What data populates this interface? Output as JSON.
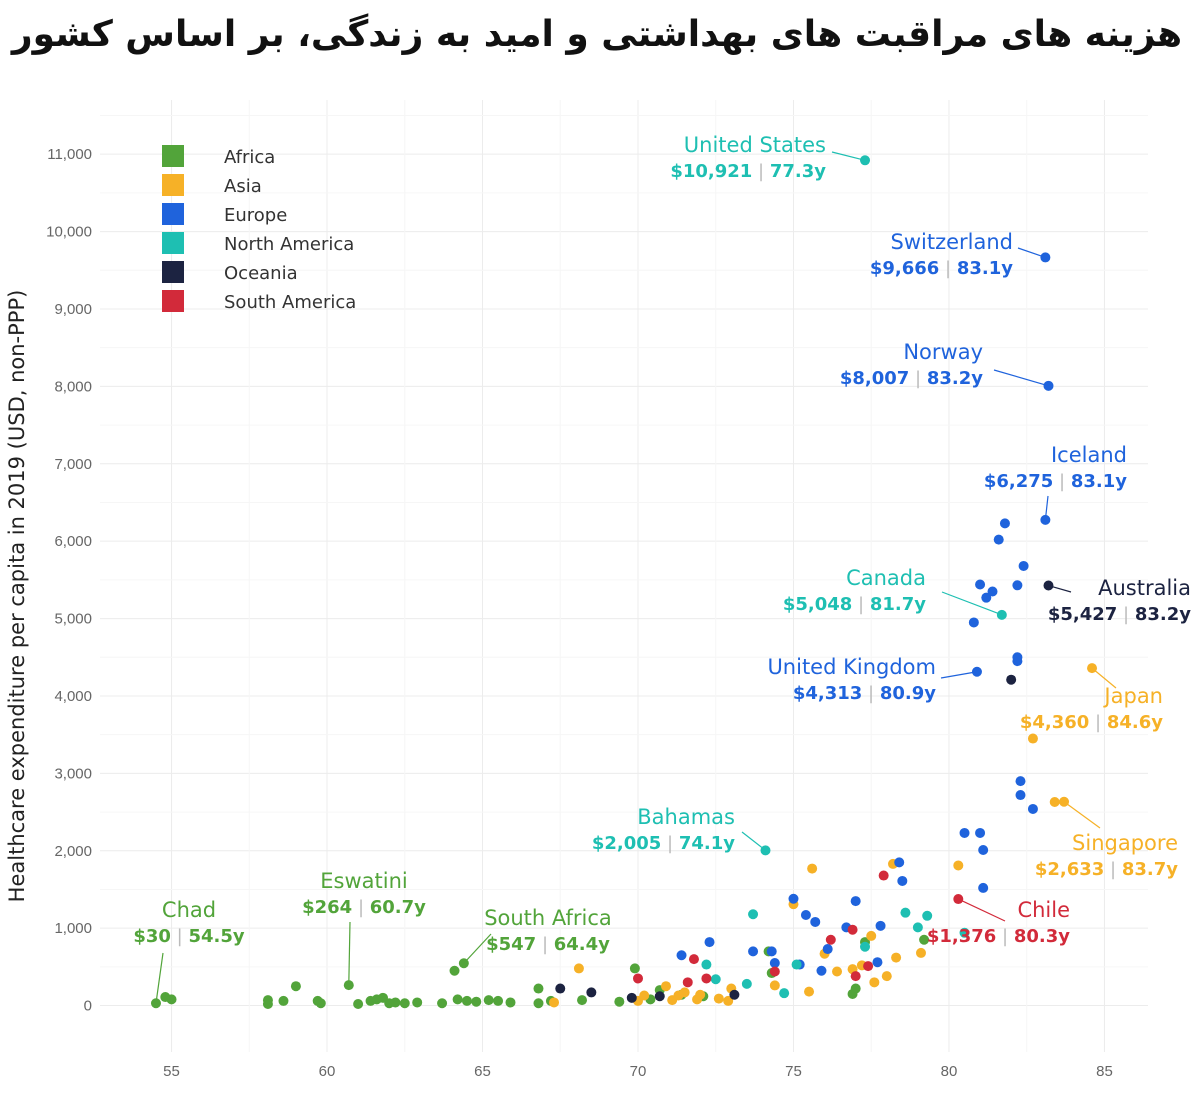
{
  "title": "هزینه های مراقبت های بهداشتی و امید به زندگی، بر اساس کشور",
  "chart_data": {
    "type": "scatter",
    "title": "هزینه های مراقبت های بهداشتی و امید به زندگی، بر اساس کشور",
    "xlabel": "",
    "ylabel": "Healthcare expenditure per capita in 2019 (USD, non-PPP)",
    "xlim": [
      52.7,
      86.4
    ],
    "ylim": [
      -600,
      11700
    ],
    "xticks": [
      55,
      60,
      65,
      70,
      75,
      80,
      85
    ],
    "yticks": [
      0,
      1000,
      2000,
      3000,
      4000,
      5000,
      6000,
      7000,
      8000,
      9000,
      10000,
      11000
    ],
    "ytick_labels": [
      "0",
      "1,000",
      "2,000",
      "3,000",
      "4,000",
      "5,000",
      "6,000",
      "7,000",
      "8,000",
      "9,000",
      "10,000",
      "11,000"
    ],
    "grid": true,
    "legend_position": "top-left",
    "regions": [
      {
        "name": "Africa",
        "color": "#52a43a"
      },
      {
        "name": "Asia",
        "color": "#f6b127"
      },
      {
        "name": "Europe",
        "color": "#1f63dc"
      },
      {
        "name": "North America",
        "color": "#1ebfb2"
      },
      {
        "name": "Oceania",
        "color": "#1c2341"
      },
      {
        "name": "South America",
        "color": "#d22a3a"
      }
    ],
    "highlighted": [
      {
        "country": "United States",
        "region": "North America",
        "x": 77.3,
        "y": 10921,
        "value_label": "$10,921",
        "le_label": "77.3y"
      },
      {
        "country": "Switzerland",
        "region": "Europe",
        "x": 83.1,
        "y": 9666,
        "value_label": "$9,666",
        "le_label": "83.1y"
      },
      {
        "country": "Norway",
        "region": "Europe",
        "x": 83.2,
        "y": 8007,
        "value_label": "$8,007",
        "le_label": "83.2y"
      },
      {
        "country": "Iceland",
        "region": "Europe",
        "x": 83.1,
        "y": 6275,
        "value_label": "$6,275",
        "le_label": "83.1y"
      },
      {
        "country": "Canada",
        "region": "North America",
        "x": 81.7,
        "y": 5048,
        "value_label": "$5,048",
        "le_label": "81.7y"
      },
      {
        "country": "Australia",
        "region": "Oceania",
        "x": 83.2,
        "y": 5427,
        "value_label": "$5,427",
        "le_label": "83.2y"
      },
      {
        "country": "United Kingdom",
        "region": "Europe",
        "x": 80.9,
        "y": 4313,
        "value_label": "$4,313",
        "le_label": "80.9y"
      },
      {
        "country": "Japan",
        "region": "Asia",
        "x": 84.6,
        "y": 4360,
        "value_label": "$4,360",
        "le_label": "84.6y"
      },
      {
        "country": "Singapore",
        "region": "Asia",
        "x": 83.7,
        "y": 2633,
        "value_label": "$2,633",
        "le_label": "83.7y"
      },
      {
        "country": "Bahamas",
        "region": "North America",
        "x": 74.1,
        "y": 2005,
        "value_label": "$2,005",
        "le_label": "74.1y"
      },
      {
        "country": "Chile",
        "region": "South America",
        "x": 80.3,
        "y": 1376,
        "value_label": "$1,376",
        "le_label": "80.3y"
      },
      {
        "country": "Chad",
        "region": "Africa",
        "x": 54.5,
        "y": 30,
        "value_label": "$30",
        "le_label": "54.5y"
      },
      {
        "country": "Eswatini",
        "region": "Africa",
        "x": 60.7,
        "y": 264,
        "value_label": "$264",
        "le_label": "60.7y"
      },
      {
        "country": "South Africa",
        "region": "Africa",
        "x": 64.4,
        "y": 547,
        "value_label": "$547",
        "le_label": "64.4y"
      }
    ],
    "points": [
      {
        "region": "Africa",
        "x": 54.5,
        "y": 30
      },
      {
        "region": "Africa",
        "x": 54.8,
        "y": 110
      },
      {
        "region": "Africa",
        "x": 55.0,
        "y": 80
      },
      {
        "region": "Africa",
        "x": 58.1,
        "y": 70
      },
      {
        "region": "Africa",
        "x": 58.1,
        "y": 20
      },
      {
        "region": "Africa",
        "x": 58.6,
        "y": 60
      },
      {
        "region": "Africa",
        "x": 59.0,
        "y": 250
      },
      {
        "region": "Africa",
        "x": 59.7,
        "y": 60
      },
      {
        "region": "Africa",
        "x": 59.8,
        "y": 30
      },
      {
        "region": "Africa",
        "x": 60.7,
        "y": 264
      },
      {
        "region": "Africa",
        "x": 61.0,
        "y": 20
      },
      {
        "region": "Africa",
        "x": 61.4,
        "y": 60
      },
      {
        "region": "Africa",
        "x": 61.6,
        "y": 80
      },
      {
        "region": "Africa",
        "x": 61.8,
        "y": 100
      },
      {
        "region": "Africa",
        "x": 62.0,
        "y": 30
      },
      {
        "region": "Africa",
        "x": 62.2,
        "y": 40
      },
      {
        "region": "Africa",
        "x": 62.5,
        "y": 30
      },
      {
        "region": "Africa",
        "x": 62.9,
        "y": 40
      },
      {
        "region": "Africa",
        "x": 63.7,
        "y": 30
      },
      {
        "region": "Africa",
        "x": 64.1,
        "y": 450
      },
      {
        "region": "Africa",
        "x": 64.2,
        "y": 80
      },
      {
        "region": "Africa",
        "x": 64.4,
        "y": 547
      },
      {
        "region": "Africa",
        "x": 64.5,
        "y": 60
      },
      {
        "region": "Africa",
        "x": 64.8,
        "y": 50
      },
      {
        "region": "Africa",
        "x": 65.2,
        "y": 70
      },
      {
        "region": "Africa",
        "x": 65.5,
        "y": 60
      },
      {
        "region": "Africa",
        "x": 65.9,
        "y": 40
      },
      {
        "region": "Africa",
        "x": 66.8,
        "y": 220
      },
      {
        "region": "Africa",
        "x": 66.8,
        "y": 30
      },
      {
        "region": "Africa",
        "x": 67.2,
        "y": 60
      },
      {
        "region": "Africa",
        "x": 68.2,
        "y": 70
      },
      {
        "region": "Africa",
        "x": 69.4,
        "y": 50
      },
      {
        "region": "Africa",
        "x": 69.9,
        "y": 480
      },
      {
        "region": "Africa",
        "x": 70.4,
        "y": 80
      },
      {
        "region": "Africa",
        "x": 70.7,
        "y": 200
      },
      {
        "region": "Africa",
        "x": 71.4,
        "y": 140
      },
      {
        "region": "Africa",
        "x": 72.1,
        "y": 120
      },
      {
        "region": "Africa",
        "x": 74.2,
        "y": 700
      },
      {
        "region": "Africa",
        "x": 74.3,
        "y": 420
      },
      {
        "region": "Africa",
        "x": 76.9,
        "y": 150
      },
      {
        "region": "Africa",
        "x": 77.0,
        "y": 220
      },
      {
        "region": "Africa",
        "x": 77.3,
        "y": 820
      },
      {
        "region": "Africa",
        "x": 79.2,
        "y": 850
      },
      {
        "region": "Asia",
        "x": 67.3,
        "y": 40
      },
      {
        "region": "Asia",
        "x": 68.1,
        "y": 480
      },
      {
        "region": "Asia",
        "x": 70.0,
        "y": 60
      },
      {
        "region": "Asia",
        "x": 70.2,
        "y": 130
      },
      {
        "region": "Asia",
        "x": 70.9,
        "y": 250
      },
      {
        "region": "Asia",
        "x": 71.1,
        "y": 70
      },
      {
        "region": "Asia",
        "x": 71.3,
        "y": 130
      },
      {
        "region": "Asia",
        "x": 71.5,
        "y": 170
      },
      {
        "region": "Asia",
        "x": 71.9,
        "y": 80
      },
      {
        "region": "Asia",
        "x": 72.0,
        "y": 140
      },
      {
        "region": "Asia",
        "x": 72.6,
        "y": 90
      },
      {
        "region": "Asia",
        "x": 72.9,
        "y": 60
      },
      {
        "region": "Asia",
        "x": 73.0,
        "y": 220
      },
      {
        "region": "Asia",
        "x": 74.4,
        "y": 260
      },
      {
        "region": "Asia",
        "x": 75.0,
        "y": 1310
      },
      {
        "region": "Asia",
        "x": 75.5,
        "y": 180
      },
      {
        "region": "Asia",
        "x": 75.6,
        "y": 1770
      },
      {
        "region": "Asia",
        "x": 76.0,
        "y": 670
      },
      {
        "region": "Asia",
        "x": 76.4,
        "y": 440
      },
      {
        "region": "Asia",
        "x": 76.9,
        "y": 470
      },
      {
        "region": "Asia",
        "x": 77.2,
        "y": 520
      },
      {
        "region": "Asia",
        "x": 77.5,
        "y": 900
      },
      {
        "region": "Asia",
        "x": 77.6,
        "y": 300
      },
      {
        "region": "Asia",
        "x": 78.0,
        "y": 380
      },
      {
        "region": "Asia",
        "x": 78.2,
        "y": 1830
      },
      {
        "region": "Asia",
        "x": 78.3,
        "y": 620
      },
      {
        "region": "Asia",
        "x": 79.1,
        "y": 680
      },
      {
        "region": "Asia",
        "x": 80.3,
        "y": 1810
      },
      {
        "region": "Asia",
        "x": 82.7,
        "y": 3450
      },
      {
        "region": "Asia",
        "x": 83.4,
        "y": 2630
      },
      {
        "region": "Asia",
        "x": 83.7,
        "y": 2633
      },
      {
        "region": "Asia",
        "x": 84.6,
        "y": 4360
      },
      {
        "region": "Europe",
        "x": 71.4,
        "y": 650
      },
      {
        "region": "Europe",
        "x": 72.3,
        "y": 820
      },
      {
        "region": "Europe",
        "x": 73.7,
        "y": 700
      },
      {
        "region": "Europe",
        "x": 74.3,
        "y": 700
      },
      {
        "region": "Europe",
        "x": 74.4,
        "y": 550
      },
      {
        "region": "Europe",
        "x": 75.0,
        "y": 1380
      },
      {
        "region": "Europe",
        "x": 75.2,
        "y": 530
      },
      {
        "region": "Europe",
        "x": 75.4,
        "y": 1170
      },
      {
        "region": "Europe",
        "x": 75.7,
        "y": 1080
      },
      {
        "region": "Europe",
        "x": 75.9,
        "y": 450
      },
      {
        "region": "Europe",
        "x": 76.1,
        "y": 730
      },
      {
        "region": "Europe",
        "x": 76.7,
        "y": 1010
      },
      {
        "region": "Europe",
        "x": 77.0,
        "y": 1350
      },
      {
        "region": "Europe",
        "x": 77.7,
        "y": 560
      },
      {
        "region": "Europe",
        "x": 77.8,
        "y": 1030
      },
      {
        "region": "Europe",
        "x": 78.4,
        "y": 1850
      },
      {
        "region": "Europe",
        "x": 78.5,
        "y": 1610
      },
      {
        "region": "Europe",
        "x": 80.5,
        "y": 2230
      },
      {
        "region": "Europe",
        "x": 80.8,
        "y": 4950
      },
      {
        "region": "Europe",
        "x": 80.9,
        "y": 4313
      },
      {
        "region": "Europe",
        "x": 81.0,
        "y": 2230
      },
      {
        "region": "Europe",
        "x": 81.0,
        "y": 5440
      },
      {
        "region": "Europe",
        "x": 81.1,
        "y": 2010
      },
      {
        "region": "Europe",
        "x": 81.1,
        "y": 1520
      },
      {
        "region": "Europe",
        "x": 81.2,
        "y": 5270
      },
      {
        "region": "Europe",
        "x": 81.4,
        "y": 5350
      },
      {
        "region": "Europe",
        "x": 81.6,
        "y": 6020
      },
      {
        "region": "Europe",
        "x": 81.8,
        "y": 6230
      },
      {
        "region": "Europe",
        "x": 82.2,
        "y": 4450
      },
      {
        "region": "Europe",
        "x": 82.2,
        "y": 4500
      },
      {
        "region": "Europe",
        "x": 82.2,
        "y": 5430
      },
      {
        "region": "Europe",
        "x": 82.3,
        "y": 2900
      },
      {
        "region": "Europe",
        "x": 82.3,
        "y": 2720
      },
      {
        "region": "Europe",
        "x": 82.4,
        "y": 5680
      },
      {
        "region": "Europe",
        "x": 82.7,
        "y": 2540
      },
      {
        "region": "Europe",
        "x": 83.1,
        "y": 6275
      },
      {
        "region": "Europe",
        "x": 83.1,
        "y": 9666
      },
      {
        "region": "Europe",
        "x": 83.2,
        "y": 8007
      },
      {
        "region": "North America",
        "x": 72.2,
        "y": 530
      },
      {
        "region": "North America",
        "x": 72.5,
        "y": 340
      },
      {
        "region": "North America",
        "x": 73.5,
        "y": 280
      },
      {
        "region": "North America",
        "x": 73.7,
        "y": 1180
      },
      {
        "region": "North America",
        "x": 74.1,
        "y": 2005
      },
      {
        "region": "North America",
        "x": 74.7,
        "y": 160
      },
      {
        "region": "North America",
        "x": 75.1,
        "y": 530
      },
      {
        "region": "North America",
        "x": 77.3,
        "y": 10921
      },
      {
        "region": "North America",
        "x": 77.3,
        "y": 760
      },
      {
        "region": "North America",
        "x": 78.6,
        "y": 1200
      },
      {
        "region": "North America",
        "x": 79.0,
        "y": 1010
      },
      {
        "region": "North America",
        "x": 79.3,
        "y": 1160
      },
      {
        "region": "North America",
        "x": 80.5,
        "y": 940
      },
      {
        "region": "North America",
        "x": 81.7,
        "y": 5048
      },
      {
        "region": "Oceania",
        "x": 67.5,
        "y": 220
      },
      {
        "region": "Oceania",
        "x": 68.5,
        "y": 170
      },
      {
        "region": "Oceania",
        "x": 69.8,
        "y": 100
      },
      {
        "region": "Oceania",
        "x": 70.7,
        "y": 120
      },
      {
        "region": "Oceania",
        "x": 73.1,
        "y": 140
      },
      {
        "region": "Oceania",
        "x": 82.0,
        "y": 4210
      },
      {
        "region": "Oceania",
        "x": 83.2,
        "y": 5427
      },
      {
        "region": "South America",
        "x": 70.0,
        "y": 350
      },
      {
        "region": "South America",
        "x": 71.6,
        "y": 300
      },
      {
        "region": "South America",
        "x": 71.8,
        "y": 600
      },
      {
        "region": "South America",
        "x": 72.2,
        "y": 350
      },
      {
        "region": "South America",
        "x": 74.4,
        "y": 440
      },
      {
        "region": "South America",
        "x": 76.2,
        "y": 850
      },
      {
        "region": "South America",
        "x": 76.9,
        "y": 980
      },
      {
        "region": "South America",
        "x": 77.0,
        "y": 380
      },
      {
        "region": "South America",
        "x": 77.4,
        "y": 510
      },
      {
        "region": "South America",
        "x": 77.9,
        "y": 1680
      },
      {
        "region": "South America",
        "x": 80.3,
        "y": 1376
      }
    ]
  }
}
